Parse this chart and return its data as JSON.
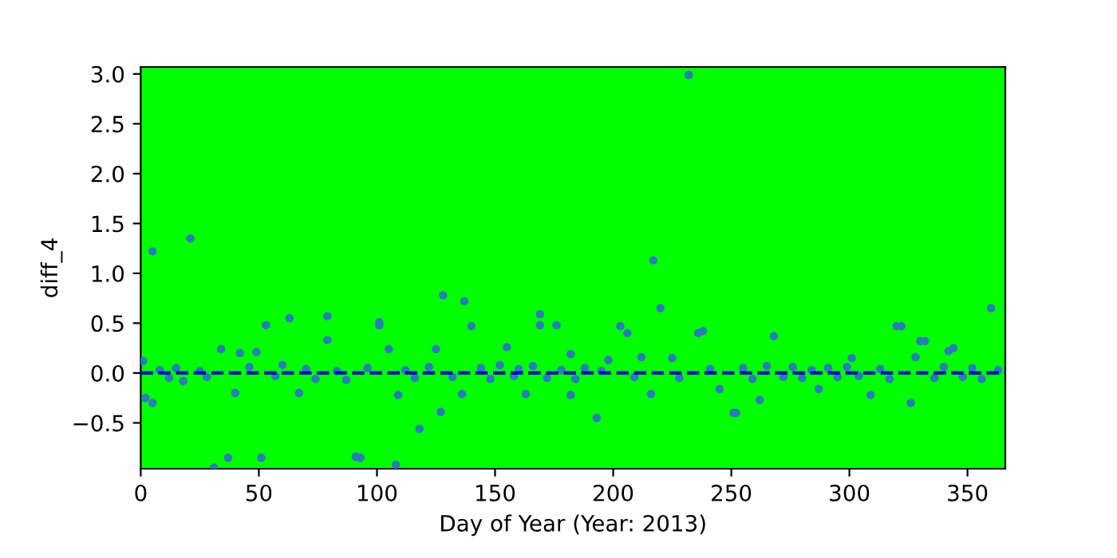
{
  "chart_data": {
    "type": "scatter",
    "xlabel": "Day of Year (Year: 2013)",
    "ylabel": "diff_4",
    "x": [
      1,
      2,
      5,
      5,
      8,
      12,
      15,
      18,
      21,
      25,
      28,
      31,
      34,
      37,
      40,
      42,
      46,
      49,
      51,
      53,
      57,
      60,
      63,
      67,
      70,
      74,
      79,
      79,
      83,
      87,
      91,
      93,
      96,
      101,
      101,
      105,
      108,
      109,
      112,
      116,
      118,
      122,
      125,
      127,
      128,
      132,
      136,
      137,
      140,
      144,
      148,
      152,
      155,
      158,
      160,
      163,
      166,
      169,
      169,
      172,
      176,
      178,
      182,
      182,
      184,
      188,
      193,
      195,
      198,
      203,
      206,
      209,
      212,
      216,
      217,
      220,
      225,
      228,
      232,
      236,
      238,
      241,
      245,
      251,
      252,
      255,
      259,
      262,
      265,
      268,
      272,
      276,
      280,
      284,
      287,
      291,
      295,
      299,
      301,
      304,
      309,
      313,
      317,
      320,
      322,
      326,
      328,
      330,
      332,
      336,
      340,
      342,
      344,
      348,
      352,
      356,
      360,
      363
    ],
    "values": [
      0.12,
      -0.25,
      1.22,
      -0.3,
      0.03,
      -0.05,
      0.05,
      -0.08,
      1.35,
      0.02,
      -0.04,
      -0.95,
      0.24,
      -0.85,
      -0.2,
      0.2,
      0.06,
      0.21,
      -0.85,
      0.48,
      -0.03,
      0.08,
      0.55,
      -0.2,
      0.04,
      -0.06,
      0.57,
      0.33,
      0.02,
      -0.07,
      -0.84,
      -0.85,
      0.05,
      0.48,
      0.51,
      0.24,
      -0.92,
      -0.22,
      0.03,
      -0.05,
      -0.56,
      0.06,
      0.24,
      -0.39,
      0.78,
      -0.04,
      -0.21,
      0.72,
      0.47,
      0.05,
      -0.06,
      0.08,
      0.26,
      -0.03,
      0.04,
      -0.21,
      0.07,
      0.59,
      0.48,
      -0.05,
      0.48,
      0.03,
      0.19,
      -0.22,
      -0.06,
      0.05,
      -0.45,
      0.02,
      0.13,
      0.47,
      0.4,
      -0.04,
      0.16,
      -0.21,
      1.13,
      0.65,
      0.15,
      -0.05,
      2.99,
      0.4,
      0.42,
      0.04,
      -0.16,
      -0.4,
      -0.4,
      0.05,
      -0.06,
      -0.27,
      0.07,
      0.37,
      -0.04,
      0.06,
      -0.05,
      0.03,
      -0.16,
      0.05,
      -0.04,
      0.06,
      0.15,
      -0.03,
      -0.22,
      0.04,
      -0.06,
      0.47,
      0.47,
      -0.3,
      0.16,
      0.32,
      0.32,
      -0.05,
      0.06,
      0.22,
      0.25,
      -0.04,
      0.05,
      -0.06,
      0.65,
      0.03
    ],
    "color": "#2b7bba",
    "marker": "circle",
    "ref_lines": [
      {
        "axis": "y",
        "value": 0,
        "color": "#0000cc",
        "line_style": "dashed"
      }
    ],
    "xlim": [
      0,
      366
    ],
    "xticks": [
      0,
      50,
      100,
      150,
      200,
      250,
      300,
      350
    ],
    "ylim": [
      -0.96,
      3.07
    ],
    "yticks": [
      {
        "value": -0.5,
        "label": "−0.5"
      },
      {
        "value": 0,
        "label": "0.0"
      },
      {
        "value": 0.5,
        "label": "0.5"
      },
      {
        "value": 1.0,
        "label": "1.0"
      },
      {
        "value": 1.5,
        "label": "1.5"
      },
      {
        "value": 2.0,
        "label": "2.0"
      },
      {
        "value": 2.5,
        "label": "2.5"
      },
      {
        "value": 3.0,
        "label": "3.0"
      }
    ],
    "grid": false
  }
}
